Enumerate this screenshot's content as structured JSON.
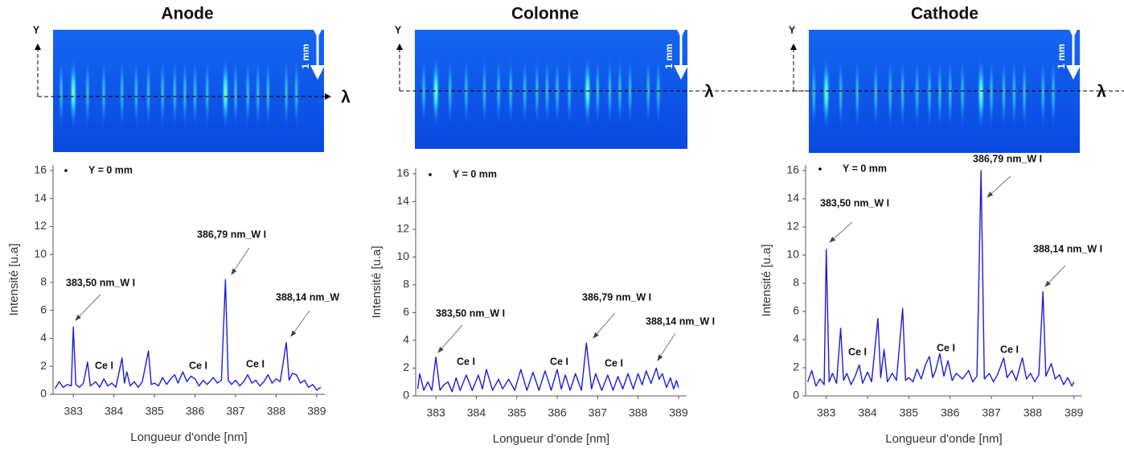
{
  "chart_data": [
    {
      "type": "line",
      "title": "Anode",
      "image_labels": [
        "Y",
        "λ",
        "1 mm"
      ],
      "x_label": "Longueur d'onde  [nm]",
      "y_label": "Intensité  [u.a]",
      "xlim": [
        382.5,
        389.2
      ],
      "ylim": [
        0,
        16.4
      ],
      "xticks": [
        383,
        384,
        385,
        386,
        387,
        388,
        389
      ],
      "yticks": [
        0,
        2,
        4,
        6,
        8,
        10,
        12,
        14,
        16
      ],
      "annotations": [
        "383,50 nm_W I",
        "386,79 nm_W I",
        "388,14 nm_W",
        "Ce I",
        "Ce I",
        "Ce I"
      ],
      "x": [
        382.55,
        382.65,
        382.75,
        382.85,
        382.95,
        383.0,
        383.06,
        383.15,
        383.25,
        383.35,
        383.42,
        383.55,
        383.65,
        383.75,
        383.85,
        383.95,
        384.05,
        384.2,
        384.26,
        384.32,
        384.4,
        384.5,
        384.6,
        384.7,
        384.85,
        384.92,
        385.0,
        385.1,
        385.2,
        385.3,
        385.4,
        385.5,
        385.58,
        385.7,
        385.8,
        385.9,
        386.0,
        386.1,
        386.2,
        386.3,
        386.45,
        386.55,
        386.65,
        386.75,
        386.82,
        386.9,
        387.0,
        387.1,
        387.2,
        387.3,
        387.4,
        387.5,
        387.6,
        387.7,
        387.8,
        387.9,
        388.0,
        388.1,
        388.25,
        388.32,
        388.4,
        388.5,
        388.6,
        388.7,
        388.8,
        388.9,
        389.0,
        389.1
      ],
      "series": [
        {
          "name": "Y = 0 mm",
          "color": "#1c1cd6",
          "values": [
            0.4,
            0.9,
            0.5,
            0.7,
            0.6,
            4.8,
            0.7,
            0.5,
            0.8,
            2.3,
            0.6,
            0.9,
            0.5,
            1.1,
            0.6,
            0.8,
            0.5,
            2.6,
            0.8,
            1.6,
            0.6,
            0.9,
            0.5,
            0.9,
            3.1,
            0.7,
            0.8,
            0.6,
            1.2,
            0.7,
            1.1,
            1.4,
            0.8,
            1.6,
            0.9,
            1.3,
            1.1,
            0.6,
            1.0,
            0.7,
            1.2,
            0.8,
            1.0,
            8.2,
            1.0,
            0.7,
            1.0,
            0.6,
            0.9,
            1.4,
            0.8,
            1.0,
            0.6,
            0.9,
            1.4,
            0.8,
            1.1,
            0.9,
            3.7,
            1.0,
            1.5,
            1.4,
            0.8,
            1.0,
            0.5,
            0.7,
            0.3,
            0.5
          ]
        }
      ]
    },
    {
      "type": "line",
      "title": "Colonne",
      "image_labels": [
        "Y",
        "λ",
        "1 mm"
      ],
      "x_label": "Longueur d'onde  [nm]",
      "y_label": "Intensité  [u.a]",
      "xlim": [
        382.5,
        389.2
      ],
      "ylim": [
        0,
        16.4
      ],
      "xticks": [
        383,
        384,
        385,
        386,
        387,
        388,
        389
      ],
      "yticks": [
        0,
        2,
        4,
        6,
        8,
        10,
        12,
        14,
        16
      ],
      "annotations": [
        "383,50 nm_W I",
        "386,79 nm_W I",
        "388,14 nm_W I",
        "Ce I",
        "Ce I",
        "Ce I"
      ],
      "x": [
        382.55,
        382.6,
        382.7,
        382.8,
        382.9,
        383.0,
        383.1,
        383.2,
        383.3,
        383.4,
        383.5,
        383.6,
        383.75,
        383.9,
        384.05,
        384.15,
        384.25,
        384.4,
        384.55,
        384.65,
        384.8,
        384.95,
        385.1,
        385.25,
        385.4,
        385.55,
        385.7,
        385.85,
        386.0,
        386.1,
        386.2,
        386.32,
        386.45,
        386.6,
        386.72,
        386.85,
        386.95,
        387.1,
        387.25,
        387.38,
        387.5,
        387.62,
        387.75,
        387.88,
        388.0,
        388.1,
        388.2,
        388.32,
        388.45,
        388.52,
        388.6,
        388.7,
        388.8,
        388.88,
        388.95,
        389.0
      ],
      "series": [
        {
          "name": "Y = 0 mm",
          "color": "#1c1cd6",
          "values": [
            0.5,
            1.6,
            0.4,
            1.0,
            0.4,
            2.8,
            0.4,
            0.8,
            1.0,
            0.3,
            1.3,
            0.4,
            1.5,
            0.4,
            1.5,
            0.5,
            1.9,
            0.4,
            1.2,
            0.5,
            1.2,
            0.4,
            1.9,
            0.4,
            1.7,
            0.4,
            1.8,
            0.4,
            1.9,
            0.5,
            1.5,
            0.4,
            1.6,
            0.4,
            3.8,
            0.5,
            1.6,
            0.4,
            1.5,
            0.4,
            1.4,
            0.5,
            1.6,
            0.5,
            1.6,
            0.8,
            1.8,
            0.9,
            2.0,
            1.2,
            1.6,
            0.6,
            1.3,
            0.5,
            1.1,
            0.6
          ]
        }
      ]
    },
    {
      "type": "line",
      "title": "Cathode",
      "image_labels": [
        "Y",
        "λ",
        "1 mm"
      ],
      "x_label": "Longueur d'onde  [nm]",
      "y_label": "Intensité  [u.a]",
      "xlim": [
        382.5,
        389.2
      ],
      "ylim": [
        0,
        16.4
      ],
      "xticks": [
        383,
        384,
        385,
        386,
        387,
        388,
        389
      ],
      "yticks": [
        0,
        2,
        4,
        6,
        8,
        10,
        12,
        14,
        16
      ],
      "annotations": [
        "383,50 nm_W I",
        "386,79 nm_W I",
        "388,14 nm_W I",
        "Ce I",
        "Ce I",
        "Ce I"
      ],
      "x": [
        382.55,
        382.65,
        382.75,
        382.85,
        382.95,
        383.0,
        383.07,
        383.15,
        383.25,
        383.35,
        383.42,
        383.5,
        383.6,
        383.7,
        383.8,
        383.88,
        384.0,
        384.1,
        384.25,
        384.32,
        384.4,
        384.48,
        384.6,
        384.7,
        384.85,
        384.92,
        385.0,
        385.1,
        385.2,
        385.3,
        385.4,
        385.5,
        385.58,
        385.65,
        385.75,
        385.85,
        385.95,
        386.05,
        386.15,
        386.3,
        386.45,
        386.55,
        386.65,
        386.75,
        386.83,
        386.95,
        387.05,
        387.15,
        387.3,
        387.38,
        387.5,
        387.6,
        387.75,
        387.85,
        387.95,
        388.05,
        388.15,
        388.25,
        388.32,
        388.45,
        388.55,
        388.65,
        388.75,
        388.85,
        388.95,
        389.0
      ],
      "series": [
        {
          "name": "Y = 0 mm",
          "color": "#1c1cd6",
          "values": [
            1.0,
            1.8,
            0.7,
            1.2,
            0.8,
            10.4,
            1.0,
            1.6,
            0.9,
            4.8,
            1.1,
            1.6,
            0.8,
            1.4,
            2.2,
            0.9,
            1.7,
            1.0,
            5.5,
            1.3,
            3.3,
            1.0,
            1.6,
            1.1,
            6.2,
            1.1,
            1.3,
            1.0,
            1.9,
            1.2,
            2.2,
            2.8,
            1.3,
            1.8,
            3.0,
            1.4,
            2.5,
            1.1,
            1.6,
            1.2,
            1.8,
            1.0,
            1.4,
            16.0,
            1.2,
            1.6,
            1.0,
            1.5,
            2.7,
            1.3,
            1.8,
            1.1,
            2.7,
            1.2,
            1.6,
            1.0,
            1.5,
            7.4,
            1.4,
            2.3,
            1.2,
            1.5,
            0.8,
            1.3,
            0.7,
            1.0
          ]
        }
      ]
    }
  ]
}
